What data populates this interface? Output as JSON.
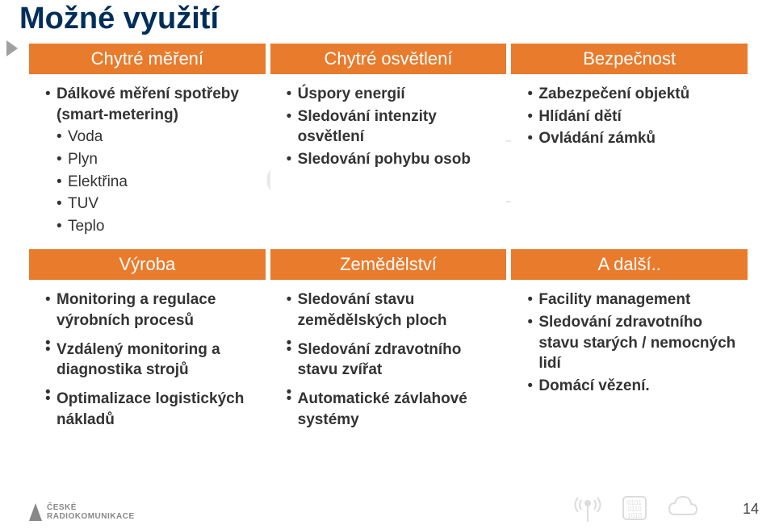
{
  "page": {
    "title": "Možné využití",
    "number": "14",
    "footer_brand_line1": "ČESKÉ",
    "footer_brand_line2": "RADIOKOMUNIKACE"
  },
  "colors": {
    "header_bg": "#e97b2c",
    "header_fg": "#ffffff",
    "title": "#002e5a",
    "body_text": "#333333",
    "marker": "#a0a0a0",
    "icon_gray": "#9e9e9e"
  },
  "grid": {
    "row1_headers": [
      "Chytré měření",
      "Chytré osvětlení",
      "Bezpečnost"
    ],
    "row2": [
      {
        "items": [
          {
            "t": "Dálkové měření spotřeby (smart-metering)",
            "bold": true
          },
          {
            "t": "Voda",
            "sub": true
          },
          {
            "t": "Plyn",
            "sub": true
          },
          {
            "t": "Elektřina",
            "sub": true
          },
          {
            "t": "TUV",
            "sub": true
          },
          {
            "t": "Teplo",
            "sub": true
          }
        ]
      },
      {
        "items": [
          {
            "t": "Úspory energií",
            "bold": true
          },
          {
            "t": "Sledování intenzity osvětlení",
            "bold": true
          },
          {
            "t": "Sledování pohybu osob",
            "bold": true
          }
        ]
      },
      {
        "items": [
          {
            "t": "Zabezpečení objektů",
            "bold": true
          },
          {
            "t": "Hlídání dětí",
            "bold": true
          },
          {
            "t": "Ovládání zámků",
            "bold": true
          }
        ]
      }
    ],
    "row3_headers": [
      "Výroba",
      "Zemědělství",
      "A další.."
    ],
    "row4": [
      {
        "items": [
          {
            "t": "Monitoring a regulace výrobních procesů",
            "bold": true
          },
          {
            "t": " ",
            "spacer": true
          },
          {
            "t": "Vzdálený monitoring a diagnostika strojů",
            "bold": true
          },
          {
            "t": " ",
            "spacer": true
          },
          {
            "t": "Optimalizace logistických nákladů",
            "bold": true
          }
        ]
      },
      {
        "items": [
          {
            "t": "Sledování stavu zemědělských ploch",
            "bold": true
          },
          {
            "t": " ",
            "spacer": true
          },
          {
            "t": "Sledování zdravotního stavu zvířat",
            "bold": true
          },
          {
            "t": " ",
            "spacer": true
          },
          {
            "t": "Automatické závlahové systémy",
            "bold": true
          }
        ]
      },
      {
        "items": [
          {
            "t": "Facility management",
            "bold": true
          },
          {
            "t": "Sledování zdravotního stavu starých / nemocných lidí",
            "bold": true
          },
          {
            "t": "Domácí vězení.",
            "bold": true
          }
        ]
      }
    ]
  }
}
